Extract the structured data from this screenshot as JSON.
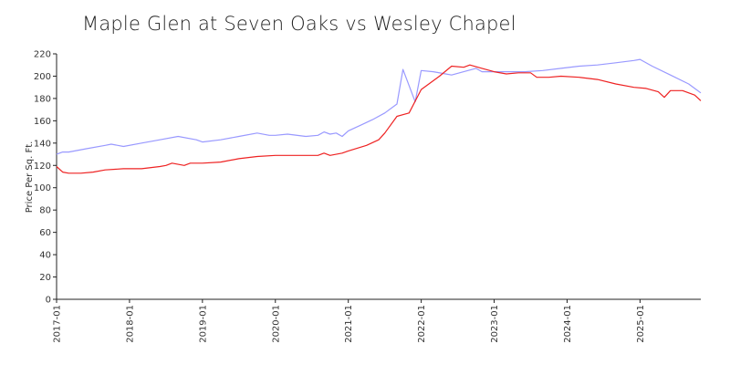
{
  "chart_data": {
    "type": "line",
    "title": "Maple Glen at Seven Oaks vs Wesley Chapel",
    "xlabel": "",
    "ylabel": "Price Per Sq. Ft.",
    "ylim": [
      0,
      220
    ],
    "yticks": [
      0,
      20,
      40,
      60,
      80,
      100,
      120,
      140,
      160,
      180,
      200,
      220
    ],
    "xticks": [
      "2017-01",
      "2018-01",
      "2019-01",
      "2020-01",
      "2021-01",
      "2022-01",
      "2023-01",
      "2024-01",
      "2025-01"
    ],
    "xlim": [
      "2017-01",
      "2025-11"
    ],
    "grid": false,
    "legend": "none",
    "series": [
      {
        "color": "#9999ff",
        "points": [
          [
            "2017-01",
            130
          ],
          [
            "2017-02",
            132
          ],
          [
            "2017-03",
            132
          ],
          [
            "2017-06",
            135
          ],
          [
            "2017-09",
            138
          ],
          [
            "2017-10",
            139
          ],
          [
            "2017-12",
            137
          ],
          [
            "2018-03",
            140
          ],
          [
            "2018-06",
            143
          ],
          [
            "2018-09",
            146
          ],
          [
            "2018-12",
            143
          ],
          [
            "2019-01",
            141
          ],
          [
            "2019-04",
            143
          ],
          [
            "2019-07",
            146
          ],
          [
            "2019-10",
            149
          ],
          [
            "2019-12",
            147
          ],
          [
            "2020-01",
            147
          ],
          [
            "2020-03",
            148
          ],
          [
            "2020-06",
            146
          ],
          [
            "2020-08",
            147
          ],
          [
            "2020-09",
            150
          ],
          [
            "2020-10",
            148
          ],
          [
            "2020-11",
            149
          ],
          [
            "2020-12",
            146
          ],
          [
            "2021-01",
            151
          ],
          [
            "2021-03",
            156
          ],
          [
            "2021-05",
            161
          ],
          [
            "2021-07",
            167
          ],
          [
            "2021-09",
            175
          ],
          [
            "2021-10",
            206
          ],
          [
            "2021-12",
            177
          ],
          [
            "2022-01",
            205
          ],
          [
            "2022-03",
            204
          ],
          [
            "2022-05",
            202
          ],
          [
            "2022-06",
            201
          ],
          [
            "2022-08",
            204
          ],
          [
            "2022-10",
            207
          ],
          [
            "2022-11",
            204
          ],
          [
            "2023-01",
            204
          ],
          [
            "2023-03",
            204
          ],
          [
            "2023-06",
            204
          ],
          [
            "2023-09",
            205
          ],
          [
            "2023-12",
            207
          ],
          [
            "2024-03",
            209
          ],
          [
            "2024-06",
            210
          ],
          [
            "2024-09",
            212
          ],
          [
            "2024-12",
            214
          ],
          [
            "2025-01",
            215
          ],
          [
            "2025-03",
            209
          ],
          [
            "2025-06",
            201
          ],
          [
            "2025-09",
            193
          ],
          [
            "2025-11",
            185
          ]
        ]
      },
      {
        "color": "#ee2222",
        "points": [
          [
            "2017-01",
            119
          ],
          [
            "2017-02",
            114
          ],
          [
            "2017-03",
            113
          ],
          [
            "2017-05",
            113
          ],
          [
            "2017-07",
            114
          ],
          [
            "2017-09",
            116
          ],
          [
            "2017-12",
            117
          ],
          [
            "2018-03",
            117
          ],
          [
            "2018-06",
            119
          ],
          [
            "2018-07",
            120
          ],
          [
            "2018-08",
            122
          ],
          [
            "2018-10",
            120
          ],
          [
            "2018-11",
            122
          ],
          [
            "2019-01",
            122
          ],
          [
            "2019-04",
            123
          ],
          [
            "2019-07",
            126
          ],
          [
            "2019-10",
            128
          ],
          [
            "2020-01",
            129
          ],
          [
            "2020-04",
            129
          ],
          [
            "2020-06",
            129
          ],
          [
            "2020-08",
            129
          ],
          [
            "2020-09",
            131
          ],
          [
            "2020-10",
            129
          ],
          [
            "2020-12",
            131
          ],
          [
            "2021-01",
            133
          ],
          [
            "2021-04",
            138
          ],
          [
            "2021-06",
            143
          ],
          [
            "2021-07",
            149
          ],
          [
            "2021-09",
            164
          ],
          [
            "2021-11",
            167
          ],
          [
            "2022-01",
            188
          ],
          [
            "2022-04",
            200
          ],
          [
            "2022-06",
            209
          ],
          [
            "2022-08",
            208
          ],
          [
            "2022-09",
            210
          ],
          [
            "2022-11",
            207
          ],
          [
            "2023-01",
            204
          ],
          [
            "2023-03",
            202
          ],
          [
            "2023-05",
            203
          ],
          [
            "2023-07",
            203
          ],
          [
            "2023-08",
            199
          ],
          [
            "2023-10",
            199
          ],
          [
            "2023-12",
            200
          ],
          [
            "2024-03",
            199
          ],
          [
            "2024-06",
            197
          ],
          [
            "2024-09",
            193
          ],
          [
            "2024-12",
            190
          ],
          [
            "2025-02",
            189
          ],
          [
            "2025-04",
            186
          ],
          [
            "2025-05",
            181
          ],
          [
            "2025-06",
            187
          ],
          [
            "2025-08",
            187
          ],
          [
            "2025-10",
            183
          ],
          [
            "2025-11",
            178
          ]
        ]
      }
    ]
  }
}
